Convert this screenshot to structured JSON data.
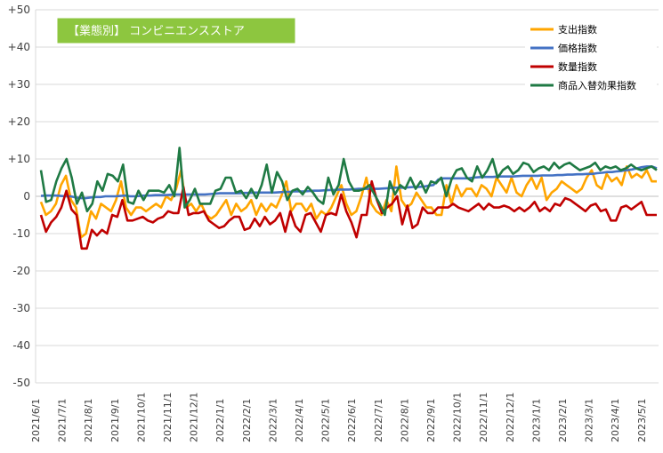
{
  "chart_data": {
    "type": "line",
    "title": "【業態別】 コンビニエンスストア",
    "xlabel": "",
    "ylabel": "",
    "ylim": [
      -50,
      50
    ],
    "yticks": [
      50,
      40,
      30,
      20,
      10,
      0,
      -10,
      -20,
      -30,
      -40,
      -50
    ],
    "ytick_labels": [
      "+50",
      "+40",
      "+30",
      "+20",
      "+10",
      "0",
      "-10",
      "-20",
      "-30",
      "-40",
      "-50"
    ],
    "xtick_labels": [
      "2021/6/1",
      "2021/7/1",
      "2021/8/1",
      "2021/9/1",
      "2021/10/1",
      "2021/11/1",
      "2021/12/1",
      "2022/1/1",
      "2022/2/1",
      "2022/3/1",
      "2022/4/1",
      "2022/5/1",
      "2022/6/1",
      "2022/7/1",
      "2022/8/1",
      "2022/9/1",
      "2022/10/1",
      "2022/11/1",
      "2022/12/1",
      "2023/1/1",
      "2023/2/1",
      "2023/3/1",
      "2023/4/1",
      "2023/5/1"
    ],
    "grid": true,
    "legend_position": "top-right",
    "series": [
      {
        "name": "支出指数",
        "color": "#FFA500",
        "values": [
          -1.5,
          -5,
          -4,
          -2,
          3,
          5.5,
          -1,
          -3,
          -11,
          -10,
          -4,
          -6,
          -2,
          -3,
          -4,
          -1,
          4,
          -3,
          -5,
          -3,
          -3,
          -4,
          -3,
          -2,
          -3,
          0,
          -1,
          2,
          7,
          -3,
          -2,
          -4,
          -2,
          -5,
          -6,
          -5,
          -3,
          -1,
          -5,
          -2,
          -4,
          -3,
          -1,
          -5,
          -2,
          -4,
          -2,
          -3,
          0,
          4,
          -4,
          -2,
          -2,
          -4,
          -2,
          -6,
          -4,
          -5,
          -3,
          0,
          3,
          -2,
          -5,
          -4,
          0,
          5,
          -2,
          -4,
          -5,
          -1,
          -4,
          8,
          -1,
          -3,
          -2,
          1,
          -1,
          -3,
          -3,
          -5,
          -5,
          3,
          -2,
          3,
          0,
          2,
          2,
          0,
          3,
          2,
          0,
          5,
          3,
          1,
          5,
          1,
          0,
          3,
          5,
          2,
          5,
          -1,
          1,
          2,
          4,
          3,
          2,
          1,
          2,
          5,
          7,
          3,
          2,
          6,
          4,
          5,
          3,
          8,
          5,
          6,
          5,
          7,
          4,
          4
        ]
      },
      {
        "name": "価格指数",
        "color": "#4472C4",
        "values": [
          0.1,
          0.2,
          0.2,
          0.2,
          0.1,
          0,
          0,
          -0.3,
          -0.5,
          -0.5,
          -0.3,
          -0.2,
          -0.2,
          0,
          0,
          0,
          0.1,
          0.2,
          0,
          0,
          0.1,
          0.2,
          0.2,
          0.3,
          0.3,
          0.3,
          0.4,
          0.5,
          0.5,
          0.5,
          0.5,
          0.5,
          0.5,
          0.5,
          0.6,
          0.7,
          0.8,
          0.8,
          0.8,
          0.8,
          0.8,
          0.9,
          0.9,
          1,
          1,
          1,
          1,
          1,
          1.1,
          1.2,
          1.2,
          1.3,
          1.3,
          1.3,
          1.4,
          1.5,
          1.5,
          1.6,
          1.7,
          1.7,
          1.8,
          1.8,
          1.8,
          1.9,
          2,
          2,
          2,
          2,
          2,
          2.1,
          2.2,
          2.3,
          2.3,
          2.3,
          2.4,
          2.5,
          2.5,
          2.6,
          2.8,
          3,
          4.5,
          4.8,
          4.8,
          4.8,
          4.8,
          4.8,
          4.8,
          5,
          5.1,
          5.2,
          5.2,
          5.2,
          5.3,
          5.3,
          5.3,
          5.3,
          5.4,
          5.5,
          5.5,
          5.5,
          5.5,
          5.6,
          5.6,
          5.6,
          5.7,
          5.7,
          5.8,
          5.8,
          5.9,
          5.9,
          6,
          6,
          6.2,
          6.3,
          6.5,
          6.5,
          6.7,
          6.8,
          7,
          7.2,
          7.5,
          7.8,
          8,
          8,
          7.5
        ]
      },
      {
        "name": "数量指数",
        "color": "#C00000",
        "values": [
          -5,
          -9.5,
          -7,
          -5.5,
          -3,
          1.5,
          -3.5,
          -5,
          -14,
          -14,
          -9,
          -10.5,
          -9,
          -10,
          -5,
          -5.5,
          -1,
          -6.5,
          -6.5,
          -6,
          -5.5,
          -6.5,
          -7,
          -6,
          -5.5,
          -4,
          -4.5,
          -4.5,
          2.5,
          -5,
          -4.5,
          -4.5,
          -4,
          -6.5,
          -7.5,
          -8.5,
          -8,
          -6.5,
          -5.5,
          -5.5,
          -9,
          -8.5,
          -6,
          -8,
          -5.5,
          -7.5,
          -6.5,
          -4.5,
          -9.5,
          -4,
          -8,
          -9.5,
          -5,
          -4.5,
          -7,
          -9.5,
          -5,
          -4.5,
          -5,
          0.5,
          -4,
          -7,
          -11,
          -5,
          -5,
          4,
          -1,
          -4.5,
          -3,
          -2,
          0,
          -7.5,
          -2.5,
          -8.5,
          -7.5,
          -3,
          -4.5,
          -4.5,
          -3,
          -3,
          -3,
          -2,
          -3,
          -3.5,
          -4,
          -3,
          -2,
          -3.5,
          -2,
          -3,
          -3,
          -2.5,
          -3,
          -4,
          -3,
          -4,
          -3,
          -1.5,
          -4,
          -3,
          -4,
          -2,
          -2.5,
          -0.5,
          -1,
          -2,
          -3,
          -4,
          -2.5,
          -2,
          -4,
          -3.5,
          -6.5,
          -6.5,
          -3,
          -2.5,
          -3.5,
          -2.5,
          -1.5,
          -5,
          -5,
          -5
        ]
      },
      {
        "name": "商品入替効果指数",
        "color": "#1F7A44",
        "values": [
          7,
          -1.5,
          -1,
          4,
          7.5,
          10,
          5,
          -2,
          1,
          -4,
          -2,
          4,
          1.5,
          6,
          5.5,
          4,
          8.5,
          -1.5,
          -2,
          1.5,
          -1,
          1.5,
          1.5,
          1.5,
          1,
          3,
          0,
          13,
          -3,
          -1,
          2,
          -2,
          -2,
          -2,
          1.5,
          2,
          5,
          5,
          1,
          1.5,
          -0.5,
          2,
          -0.5,
          3,
          8.5,
          1,
          6.5,
          4,
          -1,
          1.5,
          2,
          0.5,
          2.5,
          1,
          -1,
          -2,
          5,
          0.5,
          3,
          10,
          4,
          1.5,
          1.5,
          2,
          3,
          0.5,
          -2,
          -5,
          4,
          0.5,
          3,
          2,
          5,
          2,
          4,
          1,
          4,
          3.5,
          5,
          0,
          4.5,
          7,
          7.5,
          5,
          4,
          8,
          5,
          7,
          10,
          5,
          7,
          8,
          6,
          7,
          9,
          8.5,
          6.5,
          7.5,
          8,
          7,
          9,
          7.5,
          8.5,
          9,
          8,
          7,
          7.5,
          8,
          9,
          7,
          8,
          7.5,
          8,
          7,
          7.5,
          8.5,
          7.5,
          7,
          7.5,
          8,
          7
        ]
      }
    ]
  }
}
